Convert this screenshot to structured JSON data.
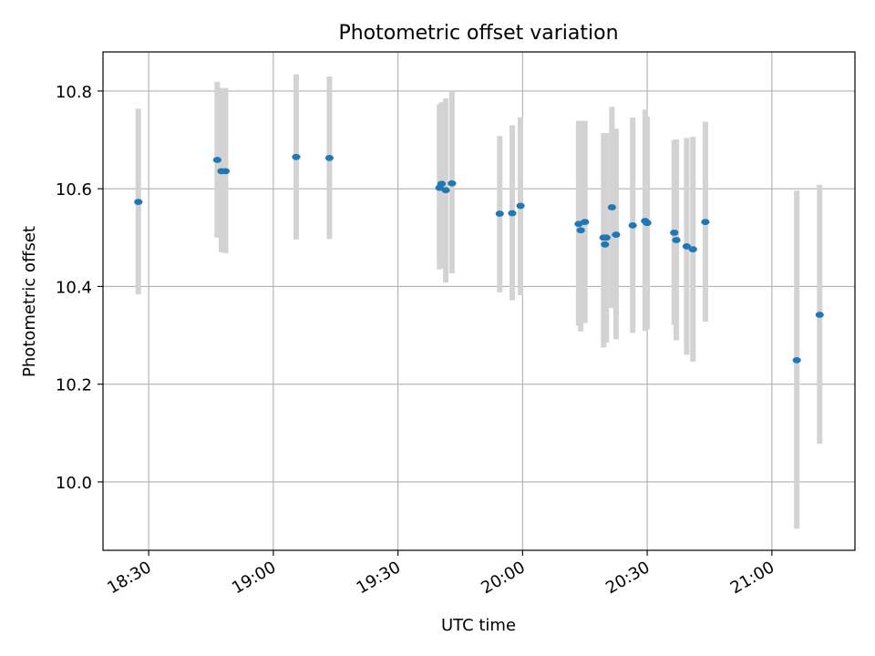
{
  "chart_data": {
    "type": "scatter",
    "title": "Photometric offset variation",
    "xlabel": "UTC time",
    "ylabel": "Photometric offset",
    "x_ticks": [
      "18:30",
      "19:00",
      "19:30",
      "20:00",
      "20:30",
      "21:00"
    ],
    "y_ticks": [
      "10.0",
      "10.2",
      "10.4",
      "10.6",
      "10.8"
    ],
    "xlim": [
      "18:19",
      "21:20"
    ],
    "ylim": [
      9.86,
      10.88
    ],
    "grid": true,
    "colors": {
      "point": "#1f77b4",
      "errorbar": "#d3d3d3",
      "grid": "#b0b0b0"
    },
    "points": [
      {
        "x": "18:27:30",
        "y": 10.573,
        "lo": 10.384,
        "hi": 10.764
      },
      {
        "x": "18:46:30",
        "y": 10.659,
        "lo": 10.5,
        "hi": 10.819
      },
      {
        "x": "18:47:30",
        "y": 10.636,
        "lo": 10.47,
        "hi": 10.806
      },
      {
        "x": "18:48:30",
        "y": 10.636,
        "lo": 10.468,
        "hi": 10.806
      },
      {
        "x": "19:05:30",
        "y": 10.665,
        "lo": 10.496,
        "hi": 10.834
      },
      {
        "x": "19:13:30",
        "y": 10.663,
        "lo": 10.497,
        "hi": 10.83
      },
      {
        "x": "19:40:00",
        "y": 10.602,
        "lo": 10.435,
        "hi": 10.773
      },
      {
        "x": "19:40:30",
        "y": 10.61,
        "lo": 10.438,
        "hi": 10.777
      },
      {
        "x": "19:41:30",
        "y": 10.597,
        "lo": 10.408,
        "hi": 10.785
      },
      {
        "x": "19:43:00",
        "y": 10.611,
        "lo": 10.427,
        "hi": 10.8
      },
      {
        "x": "19:54:30",
        "y": 10.549,
        "lo": 10.388,
        "hi": 10.708
      },
      {
        "x": "19:57:30",
        "y": 10.55,
        "lo": 10.372,
        "hi": 10.73
      },
      {
        "x": "19:59:30",
        "y": 10.565,
        "lo": 10.382,
        "hi": 10.746
      },
      {
        "x": "20:13:30",
        "y": 10.528,
        "lo": 10.32,
        "hi": 10.739
      },
      {
        "x": "20:14:00",
        "y": 10.515,
        "lo": 10.308,
        "hi": 10.739
      },
      {
        "x": "20:15:00",
        "y": 10.532,
        "lo": 10.325,
        "hi": 10.739
      },
      {
        "x": "20:19:30",
        "y": 10.5,
        "lo": 10.275,
        "hi": 10.714
      },
      {
        "x": "20:19:50",
        "y": 10.486,
        "lo": 10.29,
        "hi": 10.714
      },
      {
        "x": "20:20:10",
        "y": 10.5,
        "lo": 10.285,
        "hi": 10.714
      },
      {
        "x": "20:21:30",
        "y": 10.562,
        "lo": 10.356,
        "hi": 10.768
      },
      {
        "x": "20:22:30",
        "y": 10.506,
        "lo": 10.292,
        "hi": 10.723
      },
      {
        "x": "20:26:30",
        "y": 10.525,
        "lo": 10.305,
        "hi": 10.746
      },
      {
        "x": "20:29:30",
        "y": 10.534,
        "lo": 10.309,
        "hi": 10.762
      },
      {
        "x": "20:30:00",
        "y": 10.53,
        "lo": 10.312,
        "hi": 10.748
      },
      {
        "x": "20:36:30",
        "y": 10.51,
        "lo": 10.321,
        "hi": 10.7
      },
      {
        "x": "20:37:00",
        "y": 10.495,
        "lo": 10.29,
        "hi": 10.701
      },
      {
        "x": "20:39:30",
        "y": 10.482,
        "lo": 10.26,
        "hi": 10.704
      },
      {
        "x": "20:41:00",
        "y": 10.476,
        "lo": 10.246,
        "hi": 10.706
      },
      {
        "x": "20:44:00",
        "y": 10.532,
        "lo": 10.328,
        "hi": 10.737
      },
      {
        "x": "21:06:00",
        "y": 10.249,
        "lo": 9.904,
        "hi": 10.596
      },
      {
        "x": "21:11:30",
        "y": 10.342,
        "lo": 10.078,
        "hi": 10.608
      }
    ]
  }
}
